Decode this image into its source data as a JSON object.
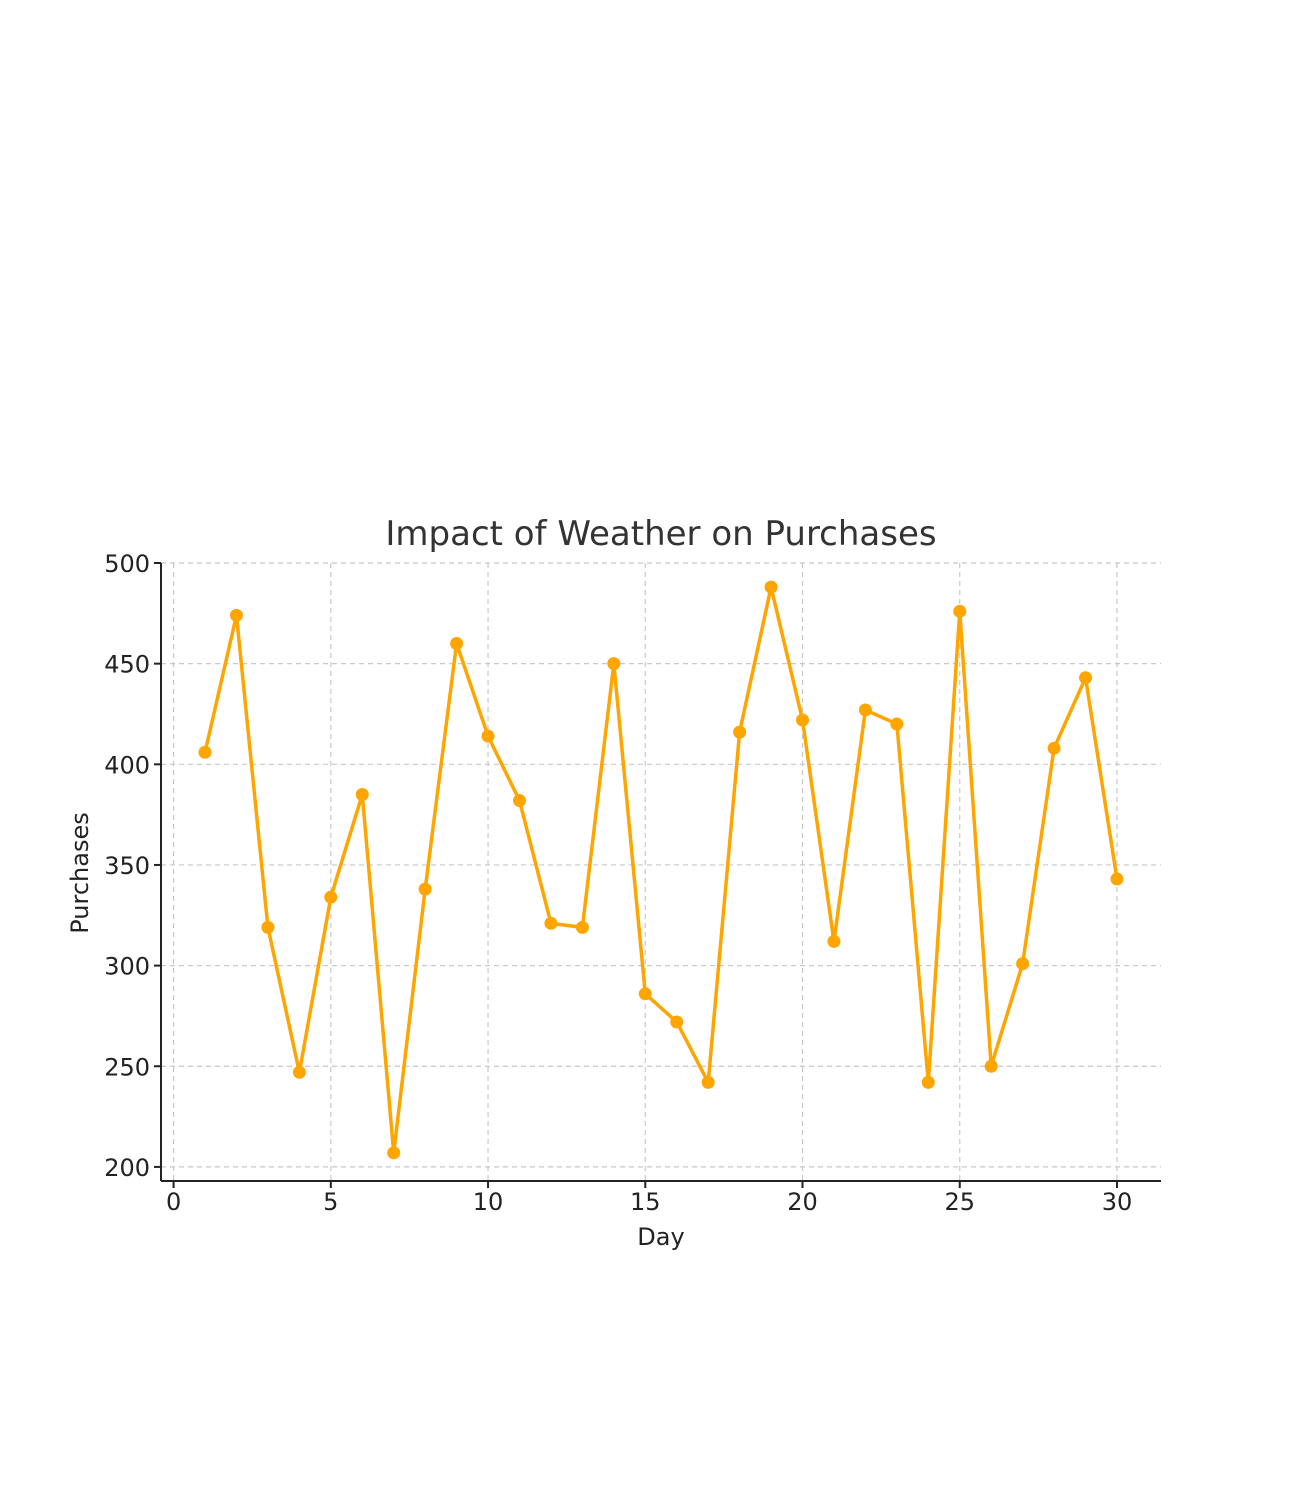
{
  "chart_data": {
    "type": "line",
    "title": "Impact of Weather on Purchases",
    "xlabel": "Day",
    "ylabel": "Purchases",
    "xlim": [
      -0.4,
      31.4
    ],
    "ylim": [
      193,
      500
    ],
    "xticks": [
      0,
      5,
      10,
      15,
      20,
      25,
      30
    ],
    "yticks": [
      200,
      250,
      300,
      350,
      400,
      450,
      500
    ],
    "grid": true,
    "line_color": "#FFA500",
    "series": [
      {
        "x": [
          1,
          2,
          3,
          4,
          5,
          6,
          7,
          8,
          9,
          10,
          11,
          12,
          13,
          14,
          15,
          16,
          17,
          18,
          19,
          20,
          21,
          22,
          23,
          24,
          25,
          26,
          27,
          28,
          29,
          30
        ],
        "values": [
          406,
          474,
          319,
          247,
          334,
          385,
          207,
          338,
          460,
          414,
          382,
          321,
          319,
          450,
          286,
          272,
          242,
          416,
          488,
          422,
          312,
          427,
          420,
          242,
          476,
          250,
          301,
          408,
          443,
          343
        ]
      }
    ]
  }
}
